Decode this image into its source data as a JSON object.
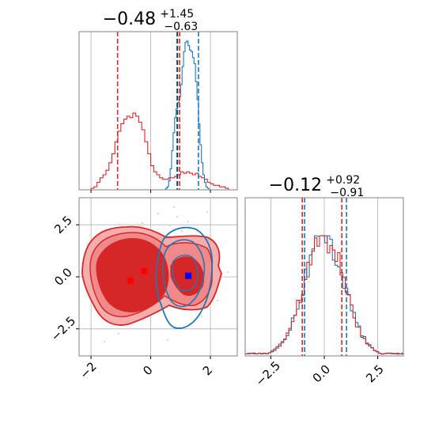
{
  "chart_data": {
    "type": "corner",
    "colors": {
      "red": "#d62728",
      "blue": "#1f77b4",
      "red_fill_light": "#f08a8a",
      "marker_blue": "#0000ff",
      "marker_red": "#ff0000"
    },
    "grid": true,
    "panels": [
      {
        "id": "hist_x",
        "type": "histogram",
        "title": {
          "main": "−0.48",
          "sup": "+1.45",
          "sub": "−0.63"
        },
        "xlim": [
          -2.4,
          2.9
        ],
        "ylim": [
          0,
          1
        ],
        "x_ticks": [
          -2,
          0,
          2
        ],
        "tick_labels_shown": false,
        "series": [
          {
            "name": "red",
            "color": "#d62728",
            "bin_start": -2.0,
            "bin_width": 0.1,
            "heights": [
              0.01,
              0.02,
              0.05,
              0.08,
              0.1,
              0.13,
              0.18,
              0.24,
              0.32,
              0.39,
              0.44,
              0.47,
              0.49,
              0.48,
              0.51,
              0.49,
              0.45,
              0.4,
              0.32,
              0.24,
              0.16,
              0.12,
              0.1,
              0.08,
              0.07,
              0.07,
              0.08,
              0.08,
              0.09,
              0.1,
              0.12,
              0.11,
              0.12,
              0.11,
              0.1,
              0.11,
              0.09,
              0.08,
              0.07,
              0.05,
              0.04,
              0.03,
              0.03,
              0.02,
              0.02,
              0.01
            ],
            "quantile_lines": [
              -1.11,
              0.97
            ]
          },
          {
            "name": "blue",
            "color": "#1f77b4",
            "bin_start": 0.5,
            "bin_width": 0.05,
            "heights": [
              0.01,
              0.02,
              0.06,
              0.14,
              0.26,
              0.38,
              0.48,
              0.54,
              0.58,
              0.62,
              0.7,
              0.82,
              0.92,
              0.98,
              0.99,
              0.96,
              0.93,
              0.92,
              0.88,
              0.84,
              0.72,
              0.6,
              0.44,
              0.3,
              0.18,
              0.1,
              0.05,
              0.02,
              0.01
            ],
            "quantile_lines": [
              0.88,
              1.6
            ]
          }
        ],
        "extra_lines": [
          {
            "x": 0.9,
            "color": "#333333"
          }
        ]
      },
      {
        "id": "joint_xy",
        "type": "contour",
        "xlim": [
          -2.4,
          2.9
        ],
        "ylim": [
          -3.8,
          3.8
        ],
        "x_ticks": [
          -2,
          0,
          2
        ],
        "x_tick_labels": [
          "−2",
          "0",
          "2"
        ],
        "y_ticks": [
          -2.5,
          0.0,
          2.5
        ],
        "y_tick_labels": [
          "−2.5",
          "0.0",
          "2.5"
        ],
        "markers": [
          {
            "x": -0.68,
            "y": -0.18,
            "color": "#ff0000"
          },
          {
            "x": -0.22,
            "y": 0.28,
            "color": "#ff0000"
          },
          {
            "x": 1.26,
            "y": 0.05,
            "color": "#0000ff"
          }
        ]
      },
      {
        "id": "hist_y",
        "type": "histogram",
        "title": {
          "main": "−0.12",
          "sup": "+0.92",
          "sub": "−0.91"
        },
        "xlim": [
          -3.7,
          3.7
        ],
        "ylim": [
          0,
          1
        ],
        "x_ticks": [
          -2.5,
          0.0,
          2.5
        ],
        "x_tick_labels": [
          "−2.5",
          "0.0",
          "2.5"
        ],
        "series": [
          {
            "name": "red",
            "color": "#d62728",
            "quantile_lines": [
              -1.03,
              0.82
            ]
          },
          {
            "name": "blue",
            "color": "#1f77b4",
            "quantile_lines": [
              -0.92,
              1.04
            ]
          }
        ]
      }
    ]
  }
}
